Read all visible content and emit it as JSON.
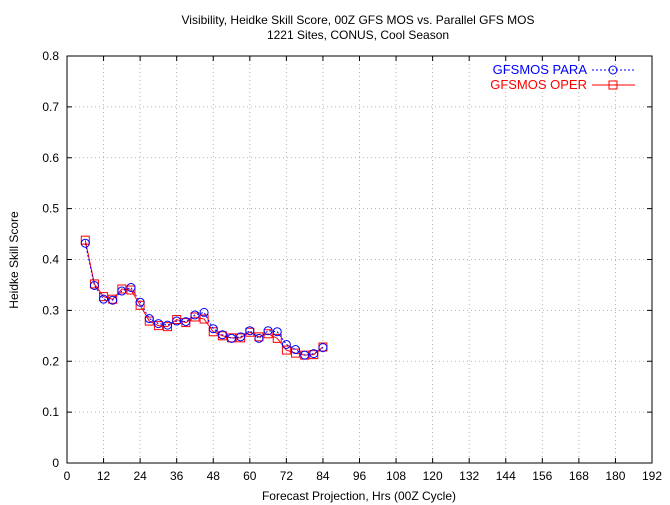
{
  "chart_data": {
    "type": "line",
    "title": "Visibility, Heidke Skill Score, 00Z GFS MOS vs. Parallel GFS MOS",
    "subtitle": "1221 Sites, CONUS, Cool Season",
    "xlabel": "Forecast Projection, Hrs (00Z Cycle)",
    "ylabel": "Heidke Skill Score",
    "xlim": [
      0,
      192
    ],
    "ylim": [
      0,
      0.8
    ],
    "xticks": [
      0,
      12,
      24,
      36,
      48,
      60,
      72,
      84,
      96,
      108,
      120,
      132,
      144,
      156,
      168,
      180,
      192
    ],
    "yticks": [
      0,
      0.1,
      0.2,
      0.3,
      0.4,
      0.5,
      0.6,
      0.7,
      0.8
    ],
    "ytick_labels": [
      "0",
      "0.1",
      "0.2",
      "0.3",
      "0.4",
      "0.5",
      "0.6",
      "0.7",
      "0.8"
    ],
    "grid": true,
    "legend_position": "top-right",
    "x": [
      6,
      9,
      12,
      15,
      18,
      21,
      24,
      27,
      30,
      33,
      36,
      39,
      42,
      45,
      48,
      51,
      54,
      57,
      60,
      63,
      66,
      69,
      72,
      75,
      78,
      81,
      84
    ],
    "series": [
      {
        "name": "GFSMOS PARA",
        "color": "#0000ff",
        "marker": "circle",
        "line_style": "dotted",
        "values": [
          0.432,
          0.349,
          0.322,
          0.32,
          0.338,
          0.345,
          0.316,
          0.284,
          0.274,
          0.271,
          0.279,
          0.278,
          0.291,
          0.296,
          0.264,
          0.252,
          0.245,
          0.248,
          0.26,
          0.245,
          0.26,
          0.258,
          0.233,
          0.223,
          0.212,
          0.215,
          0.227
        ]
      },
      {
        "name": "GFSMOS OPER",
        "color": "#ff0000",
        "marker": "square",
        "line_style": "solid",
        "values": [
          0.438,
          0.352,
          0.327,
          0.322,
          0.342,
          0.34,
          0.31,
          0.279,
          0.27,
          0.268,
          0.282,
          0.276,
          0.287,
          0.283,
          0.258,
          0.25,
          0.246,
          0.246,
          0.257,
          0.248,
          0.254,
          0.245,
          0.222,
          0.216,
          0.212,
          0.213,
          0.228
        ]
      }
    ]
  }
}
